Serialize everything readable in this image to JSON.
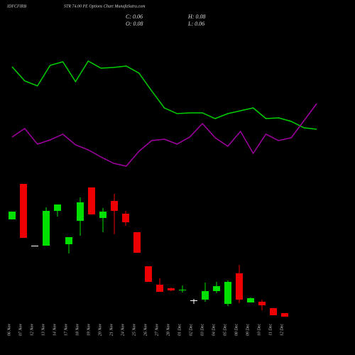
{
  "chart_data": {
    "type": "candlestick",
    "symbol": "IDFCFIRB",
    "title": "STR 74.00 PE Options Chart MunafaSutra.com",
    "info": [
      "C: 0.06",
      "H: 0.08",
      "O: 0.08",
      "L: 0.06"
    ],
    "categories": [
      "06 Nov",
      "07 Nov",
      "12 Nov",
      "13 Nov",
      "14 Nov",
      "17 Nov",
      "18 Nov",
      "19 Nov",
      "20 Nov",
      "21 Nov",
      "24 Nov",
      "25 Nov",
      "26 Nov",
      "27 Nov",
      "28 Nov",
      "01 Dec",
      "02 Dec",
      "03 Dec",
      "04 Dec",
      "05 Dec",
      "08 Dec",
      "09 Dec",
      "10 Dec",
      "11 Dec",
      "12 Dec"
    ],
    "open": [
      0.608,
      0.808,
      0.46,
      0.46,
      0.656,
      0.468,
      0.6,
      0.788,
      0.616,
      0.712,
      0.64,
      0.536,
      0.344,
      0.24,
      0.22,
      0.208,
      0.152,
      0.156,
      0.204,
      0.132,
      0.304,
      0.14,
      0.144,
      0.108,
      0.08
    ],
    "high": [
      0.652,
      0.808,
      0.46,
      0.676,
      0.692,
      0.508,
      0.732,
      0.788,
      0.672,
      0.752,
      0.656,
      0.536,
      0.344,
      0.276,
      0.224,
      0.236,
      0.16,
      0.252,
      0.256,
      0.264,
      0.352,
      0.168,
      0.156,
      0.108,
      0.08
    ],
    "low": [
      0.608,
      0.504,
      0.46,
      0.46,
      0.624,
      0.416,
      0.516,
      0.636,
      0.536,
      0.524,
      0.572,
      0.42,
      0.256,
      0.2,
      0.204,
      0.196,
      0.132,
      0.144,
      0.192,
      0.12,
      0.136,
      0.14,
      0.096,
      0.068,
      0.06
    ],
    "close": [
      0.652,
      0.504,
      0.46,
      0.656,
      0.692,
      0.508,
      0.704,
      0.636,
      0.652,
      0.656,
      0.592,
      0.42,
      0.256,
      0.2,
      0.208,
      0.212,
      0.152,
      0.204,
      0.232,
      0.256,
      0.156,
      0.164,
      0.124,
      0.068,
      0.06
    ],
    "up_color": "#00e000",
    "down_color": "#ee0000",
    "flat_color": "#ffffff",
    "ylim": [
      0.04,
      0.84
    ],
    "indicators": [
      {
        "color": "#00d000",
        "values": [
          78,
          68,
          64.5,
          79,
          81.5,
          67.5,
          82,
          77,
          77.5,
          78.5,
          73.5,
          61,
          49,
          45,
          45.5,
          45.5,
          41.5,
          45,
          47,
          49,
          41.5,
          42,
          39.5,
          35,
          34
        ]
      },
      {
        "color": "#a000a0",
        "values": [
          28.5,
          34.5,
          23.5,
          26.5,
          30.5,
          23,
          19.5,
          14.5,
          10,
          8,
          18.5,
          26,
          27,
          23.5,
          28.5,
          38,
          28,
          22,
          32.5,
          17,
          30.5,
          26,
          28,
          40,
          52
        ]
      }
    ],
    "y2lim": [
      0,
      100
    ]
  }
}
